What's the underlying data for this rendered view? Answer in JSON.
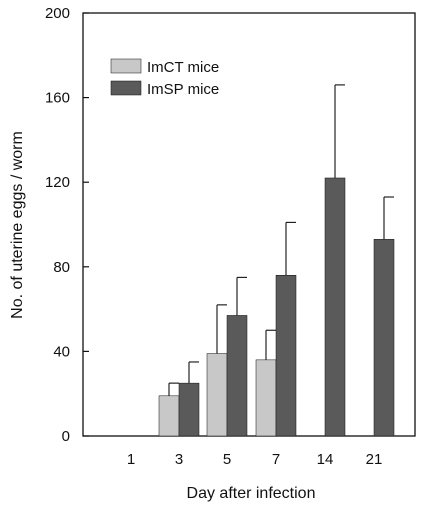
{
  "chart_data": {
    "type": "bar",
    "categories": [
      "1",
      "3",
      "5",
      "7",
      "14",
      "21"
    ],
    "series": [
      {
        "name": "ImCT mice",
        "color": "#c8c8c8",
        "values": [
          null,
          19,
          39,
          36,
          null,
          null
        ],
        "errors": [
          null,
          6,
          23,
          14,
          null,
          null
        ]
      },
      {
        "name": "ImSP mice",
        "color": "#5a5a5a",
        "values": [
          null,
          25,
          57,
          76,
          122,
          93
        ],
        "errors": [
          null,
          10,
          18,
          25,
          44,
          20
        ]
      }
    ],
    "xlabel": "Day after infection",
    "ylabel": "No. of uterine eggs / worm",
    "ylim": [
      0,
      200
    ],
    "yticks": [
      0,
      40,
      80,
      120,
      160,
      200
    ],
    "grid": false,
    "legend_position": "top-left"
  }
}
